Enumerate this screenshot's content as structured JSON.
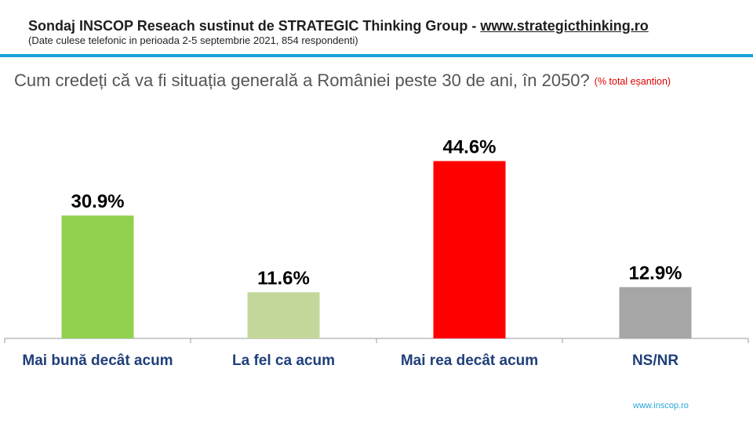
{
  "header": {
    "title_prefix": "Sondaj INSCOP Reseach sustinut de STRATEGIC Thinking Group - ",
    "title_link": "www.strategicthinking.ro",
    "subtitle": "(Date culese telefonic in perioada 2-5 septembrie 2021, 854 respondenti)",
    "rule_color": "#1ba1d8"
  },
  "question": {
    "text": "Cum credeți că va fi situația generală a României peste 30 de ani, în 2050?",
    "note": "(% total eșantion)"
  },
  "chart_data": {
    "type": "bar",
    "categories": [
      "Mai bună decât acum",
      "La fel ca acum",
      "Mai rea decât acum",
      "NS/NR"
    ],
    "values": [
      30.9,
      11.6,
      44.6,
      12.9
    ],
    "value_labels": [
      "30.9%",
      "11.6%",
      "44.6%",
      "12.9%"
    ],
    "colors": [
      "#92d050",
      "#c4d79b",
      "#ff0000",
      "#a6a6a6"
    ],
    "title": "",
    "xlabel": "",
    "ylabel": "",
    "ylim": [
      0,
      50
    ],
    "grid": false,
    "legend": "none"
  },
  "footer": {
    "link": "www.inscop.ro"
  }
}
